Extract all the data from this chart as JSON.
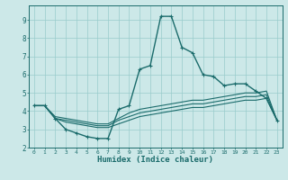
{
  "title": "",
  "xlabel": "Humidex (Indice chaleur)",
  "bg_color": "#cce8e8",
  "grid_color": "#99cccc",
  "line_color": "#1a6b6b",
  "xlim": [
    -0.5,
    23.5
  ],
  "ylim": [
    2.0,
    9.8
  ],
  "xticks": [
    0,
    1,
    2,
    3,
    4,
    5,
    6,
    7,
    8,
    9,
    10,
    11,
    12,
    13,
    14,
    15,
    16,
    17,
    18,
    19,
    20,
    21,
    22,
    23
  ],
  "yticks": [
    2,
    3,
    4,
    5,
    6,
    7,
    8,
    9
  ],
  "series": [
    {
      "x": [
        0,
        1,
        2,
        3,
        4,
        5,
        6,
        7,
        8,
        9,
        10,
        11,
        12,
        13,
        14,
        15,
        16,
        17,
        18,
        19,
        20,
        21,
        22,
        23
      ],
      "y": [
        4.3,
        4.3,
        3.6,
        3.0,
        2.8,
        2.6,
        2.5,
        2.5,
        4.1,
        4.3,
        6.3,
        6.5,
        9.2,
        9.2,
        7.5,
        7.2,
        6.0,
        5.9,
        5.4,
        5.5,
        5.5,
        5.1,
        4.7,
        3.5
      ],
      "marker": true,
      "lw": 1.0
    },
    {
      "x": [
        0,
        1,
        2,
        3,
        4,
        5,
        6,
        7,
        8,
        9,
        10,
        11,
        12,
        13,
        14,
        15,
        16,
        17,
        18,
        19,
        20,
        21,
        22,
        23
      ],
      "y": [
        4.3,
        4.3,
        3.7,
        3.6,
        3.5,
        3.4,
        3.3,
        3.3,
        3.6,
        3.9,
        4.1,
        4.2,
        4.3,
        4.4,
        4.5,
        4.6,
        4.6,
        4.7,
        4.8,
        4.9,
        5.0,
        5.0,
        5.1,
        3.5
      ],
      "marker": false,
      "lw": 0.8
    },
    {
      "x": [
        0,
        1,
        2,
        3,
        4,
        5,
        6,
        7,
        8,
        9,
        10,
        11,
        12,
        13,
        14,
        15,
        16,
        17,
        18,
        19,
        20,
        21,
        22,
        23
      ],
      "y": [
        4.3,
        4.3,
        3.6,
        3.5,
        3.4,
        3.3,
        3.2,
        3.2,
        3.5,
        3.7,
        3.9,
        4.0,
        4.1,
        4.2,
        4.3,
        4.4,
        4.4,
        4.5,
        4.6,
        4.7,
        4.8,
        4.8,
        4.9,
        3.5
      ],
      "marker": false,
      "lw": 0.8
    },
    {
      "x": [
        0,
        1,
        2,
        3,
        4,
        5,
        6,
        7,
        8,
        9,
        10,
        11,
        12,
        13,
        14,
        15,
        16,
        17,
        18,
        19,
        20,
        21,
        22,
        23
      ],
      "y": [
        4.3,
        4.3,
        3.6,
        3.4,
        3.3,
        3.2,
        3.1,
        3.1,
        3.3,
        3.5,
        3.7,
        3.8,
        3.9,
        4.0,
        4.1,
        4.2,
        4.2,
        4.3,
        4.4,
        4.5,
        4.6,
        4.6,
        4.7,
        3.5
      ],
      "marker": false,
      "lw": 0.8
    }
  ]
}
